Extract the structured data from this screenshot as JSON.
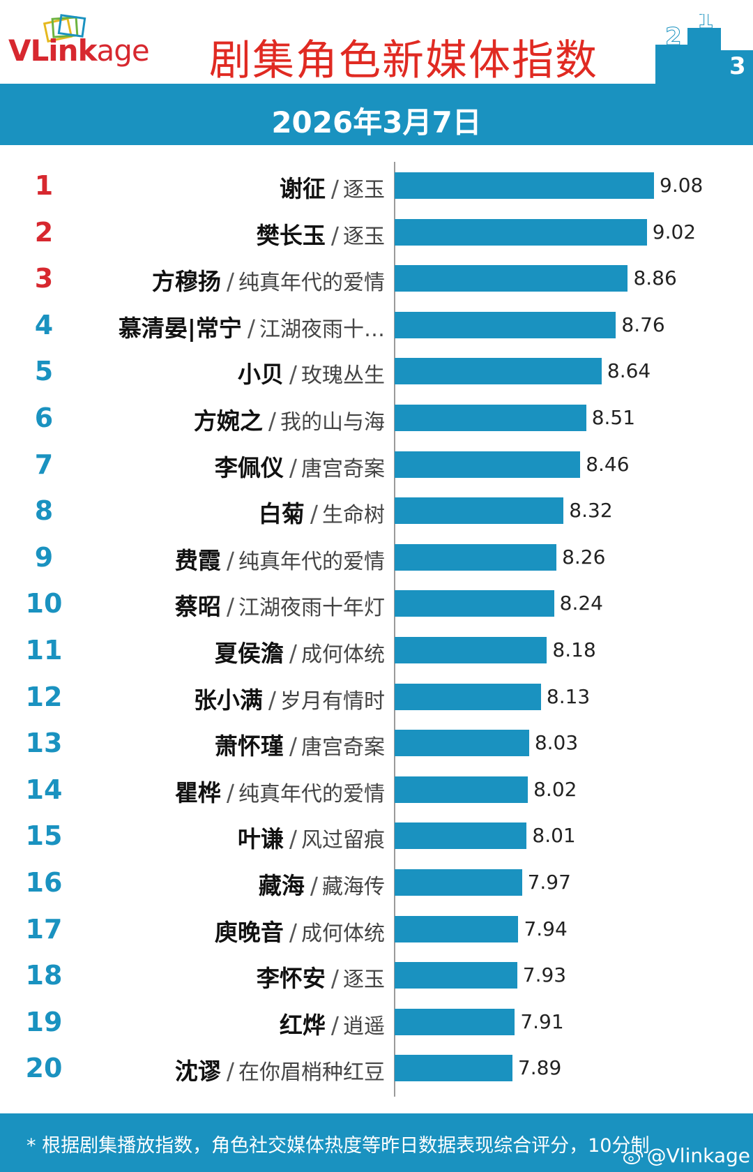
{
  "header": {
    "logo_text": "VLinkage",
    "title": "剧集角色新媒体指数",
    "date": "2026年3月7日"
  },
  "colors": {
    "accent": "#1a92c0",
    "title_red": "#e02a22",
    "top_rank_red": "#d7282f"
  },
  "chart_data": {
    "type": "bar",
    "orientation": "horizontal",
    "title": "剧集角色新媒体指数",
    "xlim": [
      0,
      10
    ],
    "grid": false,
    "items": [
      {
        "rank": "1",
        "name": "谢征",
        "drama": "逐玉",
        "value": 9.08,
        "label": "9.08"
      },
      {
        "rank": "2",
        "name": "樊长玉",
        "drama": "逐玉",
        "value": 9.02,
        "label": "9.02"
      },
      {
        "rank": "3",
        "name": "方穆扬",
        "drama": "纯真年代的爱情",
        "value": 8.86,
        "label": "8.86"
      },
      {
        "rank": "4",
        "name": "慕清晏|常宁",
        "drama": "江湖夜雨十…",
        "value": 8.76,
        "label": "8.76"
      },
      {
        "rank": "5",
        "name": "小贝",
        "drama": "玫瑰丛生",
        "value": 8.64,
        "label": "8.64"
      },
      {
        "rank": "6",
        "name": "方婉之",
        "drama": "我的山与海",
        "value": 8.51,
        "label": "8.51"
      },
      {
        "rank": "7",
        "name": "李佩仪",
        "drama": "唐宫奇案",
        "value": 8.46,
        "label": "8.46"
      },
      {
        "rank": "8",
        "name": "白菊",
        "drama": "生命树",
        "value": 8.32,
        "label": "8.32"
      },
      {
        "rank": "9",
        "name": "费霞",
        "drama": "纯真年代的爱情",
        "value": 8.26,
        "label": "8.26"
      },
      {
        "rank": "10",
        "name": "蔡昭",
        "drama": "江湖夜雨十年灯",
        "value": 8.24,
        "label": "8.24"
      },
      {
        "rank": "11",
        "name": "夏侯澹",
        "drama": "成何体统",
        "value": 8.18,
        "label": "8.18"
      },
      {
        "rank": "12",
        "name": "张小满",
        "drama": "岁月有情时",
        "value": 8.13,
        "label": "8.13"
      },
      {
        "rank": "13",
        "name": "萧怀瑾",
        "drama": "唐宫奇案",
        "value": 8.03,
        "label": "8.03"
      },
      {
        "rank": "14",
        "name": "瞿桦",
        "drama": "纯真年代的爱情",
        "value": 8.02,
        "label": "8.02"
      },
      {
        "rank": "15",
        "name": "叶谦",
        "drama": "风过留痕",
        "value": 8.01,
        "label": "8.01"
      },
      {
        "rank": "16",
        "name": "藏海",
        "drama": "藏海传",
        "value": 7.97,
        "label": "7.97"
      },
      {
        "rank": "17",
        "name": "庾晚音",
        "drama": "成何体统",
        "value": 7.94,
        "label": "7.94"
      },
      {
        "rank": "18",
        "name": "李怀安",
        "drama": "逐玉",
        "value": 7.93,
        "label": "7.93"
      },
      {
        "rank": "19",
        "name": "红烨",
        "drama": "逍遥",
        "value": 7.91,
        "label": "7.91"
      },
      {
        "rank": "20",
        "name": "沈谬",
        "drama": "在你眉梢种红豆",
        "value": 7.89,
        "label": "7.89"
      }
    ]
  },
  "footer": {
    "note": "* 根据剧集播放指数，角色社交媒体热度等昨日数据表现综合评分，10分制",
    "watermark": "@Vlinkage"
  }
}
